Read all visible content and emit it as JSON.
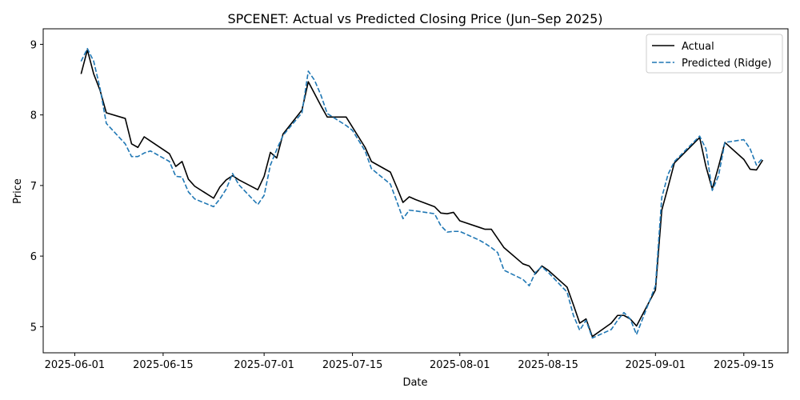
{
  "chart_data": {
    "type": "line",
    "title": "SPCENET: Actual vs Predicted Closing Price (Jun–Sep 2025)",
    "xlabel": "Date",
    "ylabel": "Price",
    "xlim": [
      "2025-05-27",
      "2025-09-22"
    ],
    "ylim": [
      4.63,
      9.22
    ],
    "x_ticks": [
      "2025-06-01",
      "2025-06-15",
      "2025-07-01",
      "2025-07-15",
      "2025-08-01",
      "2025-08-15",
      "2025-09-01",
      "2025-09-15"
    ],
    "y_ticks": [
      5,
      6,
      7,
      8,
      9
    ],
    "grid": false,
    "legend_position": "top-right",
    "series": [
      {
        "name": "Actual",
        "color": "#000000",
        "style": "solid",
        "points": [
          [
            "2025-06-02",
            8.58
          ],
          [
            "2025-06-03",
            8.92
          ],
          [
            "2025-06-04",
            8.58
          ],
          [
            "2025-06-05",
            8.35
          ],
          [
            "2025-06-06",
            8.03
          ],
          [
            "2025-06-09",
            7.95
          ],
          [
            "2025-06-10",
            7.59
          ],
          [
            "2025-06-11",
            7.54
          ],
          [
            "2025-06-12",
            7.69
          ],
          [
            "2025-06-13",
            7.63
          ],
          [
            "2025-06-16",
            7.45
          ],
          [
            "2025-06-17",
            7.27
          ],
          [
            "2025-06-18",
            7.34
          ],
          [
            "2025-06-19",
            7.09
          ],
          [
            "2025-06-20",
            6.99
          ],
          [
            "2025-06-23",
            6.82
          ],
          [
            "2025-06-24",
            6.98
          ],
          [
            "2025-06-25",
            7.08
          ],
          [
            "2025-06-26",
            7.14
          ],
          [
            "2025-06-27",
            7.08
          ],
          [
            "2025-06-30",
            6.94
          ],
          [
            "2025-07-01",
            7.13
          ],
          [
            "2025-07-02",
            7.47
          ],
          [
            "2025-07-03",
            7.39
          ],
          [
            "2025-07-04",
            7.73
          ],
          [
            "2025-07-07",
            8.07
          ],
          [
            "2025-07-08",
            8.47
          ],
          [
            "2025-07-09",
            8.3
          ],
          [
            "2025-07-10",
            8.13
          ],
          [
            "2025-07-11",
            7.97
          ],
          [
            "2025-07-14",
            7.97
          ],
          [
            "2025-07-17",
            7.54
          ],
          [
            "2025-07-18",
            7.34
          ],
          [
            "2025-07-21",
            7.19
          ],
          [
            "2025-07-22",
            6.98
          ],
          [
            "2025-07-23",
            6.76
          ],
          [
            "2025-07-24",
            6.84
          ],
          [
            "2025-07-25",
            6.8
          ],
          [
            "2025-07-28",
            6.7
          ],
          [
            "2025-07-29",
            6.61
          ],
          [
            "2025-07-30",
            6.6
          ],
          [
            "2025-07-31",
            6.62
          ],
          [
            "2025-08-01",
            6.5
          ],
          [
            "2025-08-04",
            6.41
          ],
          [
            "2025-08-05",
            6.38
          ],
          [
            "2025-08-06",
            6.38
          ],
          [
            "2025-08-07",
            6.25
          ],
          [
            "2025-08-08",
            6.12
          ],
          [
            "2025-08-11",
            5.89
          ],
          [
            "2025-08-12",
            5.86
          ],
          [
            "2025-08-13",
            5.75
          ],
          [
            "2025-08-14",
            5.86
          ],
          [
            "2025-08-15",
            5.8
          ],
          [
            "2025-08-18",
            5.56
          ],
          [
            "2025-08-19",
            5.31
          ],
          [
            "2025-08-20",
            5.05
          ],
          [
            "2025-08-21",
            5.11
          ],
          [
            "2025-08-22",
            4.86
          ],
          [
            "2025-08-25",
            5.05
          ],
          [
            "2025-08-26",
            5.16
          ],
          [
            "2025-08-27",
            5.16
          ],
          [
            "2025-08-28",
            5.11
          ],
          [
            "2025-08-29",
            5.01
          ],
          [
            "2025-09-01",
            5.52
          ],
          [
            "2025-09-02",
            6.65
          ],
          [
            "2025-09-03",
            6.98
          ],
          [
            "2025-09-04",
            7.32
          ],
          [
            "2025-09-08",
            7.68
          ],
          [
            "2025-09-09",
            7.27
          ],
          [
            "2025-09-10",
            6.95
          ],
          [
            "2025-09-11",
            7.27
          ],
          [
            "2025-09-12",
            7.61
          ],
          [
            "2025-09-15",
            7.37
          ],
          [
            "2025-09-16",
            7.23
          ],
          [
            "2025-09-17",
            7.22
          ],
          [
            "2025-09-18",
            7.36
          ]
        ]
      },
      {
        "name": "Predicted (Ridge)",
        "color": "#1f77b4",
        "style": "dashed",
        "points": [
          [
            "2025-06-02",
            8.76
          ],
          [
            "2025-06-03",
            8.94
          ],
          [
            "2025-06-04",
            8.76
          ],
          [
            "2025-06-05",
            8.38
          ],
          [
            "2025-06-06",
            7.88
          ],
          [
            "2025-06-09",
            7.59
          ],
          [
            "2025-06-10",
            7.41
          ],
          [
            "2025-06-11",
            7.41
          ],
          [
            "2025-06-12",
            7.46
          ],
          [
            "2025-06-13",
            7.49
          ],
          [
            "2025-06-16",
            7.34
          ],
          [
            "2025-06-17",
            7.13
          ],
          [
            "2025-06-18",
            7.12
          ],
          [
            "2025-06-19",
            6.91
          ],
          [
            "2025-06-20",
            6.81
          ],
          [
            "2025-06-23",
            6.7
          ],
          [
            "2025-06-24",
            6.81
          ],
          [
            "2025-06-25",
            6.95
          ],
          [
            "2025-06-26",
            7.17
          ],
          [
            "2025-06-27",
            7.01
          ],
          [
            "2025-06-30",
            6.73
          ],
          [
            "2025-07-01",
            6.86
          ],
          [
            "2025-07-02",
            7.29
          ],
          [
            "2025-07-03",
            7.51
          ],
          [
            "2025-07-04",
            7.71
          ],
          [
            "2025-07-07",
            8.03
          ],
          [
            "2025-07-08",
            8.62
          ],
          [
            "2025-07-09",
            8.49
          ],
          [
            "2025-07-10",
            8.28
          ],
          [
            "2025-07-11",
            8.02
          ],
          [
            "2025-07-14",
            7.85
          ],
          [
            "2025-07-15",
            7.78
          ],
          [
            "2025-07-17",
            7.49
          ],
          [
            "2025-07-18",
            7.24
          ],
          [
            "2025-07-21",
            7.02
          ],
          [
            "2025-07-22",
            6.78
          ],
          [
            "2025-07-23",
            6.53
          ],
          [
            "2025-07-24",
            6.65
          ],
          [
            "2025-07-25",
            6.64
          ],
          [
            "2025-07-28",
            6.6
          ],
          [
            "2025-07-29",
            6.43
          ],
          [
            "2025-07-30",
            6.34
          ],
          [
            "2025-07-31",
            6.35
          ],
          [
            "2025-08-01",
            6.35
          ],
          [
            "2025-08-04",
            6.23
          ],
          [
            "2025-08-05",
            6.18
          ],
          [
            "2025-08-06",
            6.12
          ],
          [
            "2025-08-07",
            6.05
          ],
          [
            "2025-08-08",
            5.8
          ],
          [
            "2025-08-11",
            5.67
          ],
          [
            "2025-08-12",
            5.58
          ],
          [
            "2025-08-13",
            5.77
          ],
          [
            "2025-08-14",
            5.85
          ],
          [
            "2025-08-15",
            5.77
          ],
          [
            "2025-08-18",
            5.49
          ],
          [
            "2025-08-19",
            5.16
          ],
          [
            "2025-08-20",
            4.95
          ],
          [
            "2025-08-21",
            5.09
          ],
          [
            "2025-08-22",
            4.84
          ],
          [
            "2025-08-25",
            4.96
          ],
          [
            "2025-08-26",
            5.09
          ],
          [
            "2025-08-27",
            5.2
          ],
          [
            "2025-08-28",
            5.11
          ],
          [
            "2025-08-29",
            4.89
          ],
          [
            "2025-09-01",
            5.58
          ],
          [
            "2025-09-02",
            6.83
          ],
          [
            "2025-09-03",
            7.16
          ],
          [
            "2025-09-04",
            7.34
          ],
          [
            "2025-09-08",
            7.7
          ],
          [
            "2025-09-09",
            7.52
          ],
          [
            "2025-09-10",
            6.93
          ],
          [
            "2025-09-11",
            7.14
          ],
          [
            "2025-09-12",
            7.61
          ],
          [
            "2025-09-15",
            7.65
          ],
          [
            "2025-09-16",
            7.52
          ],
          [
            "2025-09-17",
            7.29
          ],
          [
            "2025-09-18",
            7.39
          ]
        ]
      }
    ]
  }
}
